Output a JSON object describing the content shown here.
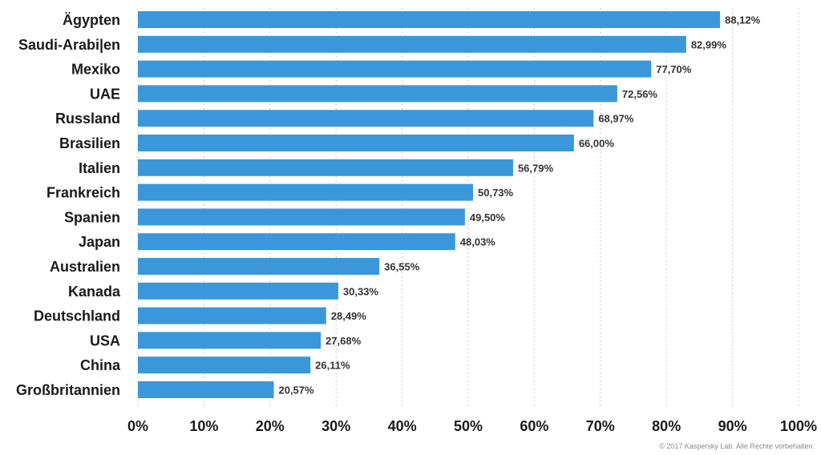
{
  "chart_data": {
    "type": "bar",
    "orientation": "horizontal",
    "categories": [
      "Ägypten",
      "Saudi-Arabi|en",
      "Mexiko",
      "UAE",
      "Russland",
      "Brasilien",
      "Italien",
      "Frankreich",
      "Spanien",
      "Japan",
      "Australien",
      "Kanada",
      "Deutschland",
      "USA",
      "China",
      "Großbritannien"
    ],
    "values": [
      88.12,
      82.99,
      77.7,
      72.56,
      68.97,
      66.0,
      56.79,
      50.73,
      49.5,
      48.03,
      36.55,
      30.33,
      28.49,
      27.68,
      26.11,
      20.57
    ],
    "value_labels": [
      "88,12%",
      "82,99%",
      "77,70%",
      "72,56%",
      "68,97%",
      "66,00%",
      "56,79%",
      "50,73%",
      "49,50%",
      "48,03%",
      "36,55%",
      "30,33%",
      "28,49%",
      "27,68%",
      "26,11%",
      "20,57%"
    ],
    "xlim": [
      0,
      100
    ],
    "x_ticks": [
      0,
      10,
      20,
      30,
      40,
      50,
      60,
      70,
      80,
      90,
      100
    ],
    "x_tick_labels": [
      "0%",
      "10%",
      "20%",
      "30%",
      "40%",
      "50%",
      "60%",
      "70%",
      "80%",
      "90%",
      "100%"
    ],
    "grid": "vertical-dashed",
    "bar_color": "#3a97d9",
    "title": "",
    "xlabel": "",
    "ylabel": ""
  },
  "footer": {
    "copyright": "© 2017 Kaspersky Lab. Alle Rechte vorbehalten."
  }
}
